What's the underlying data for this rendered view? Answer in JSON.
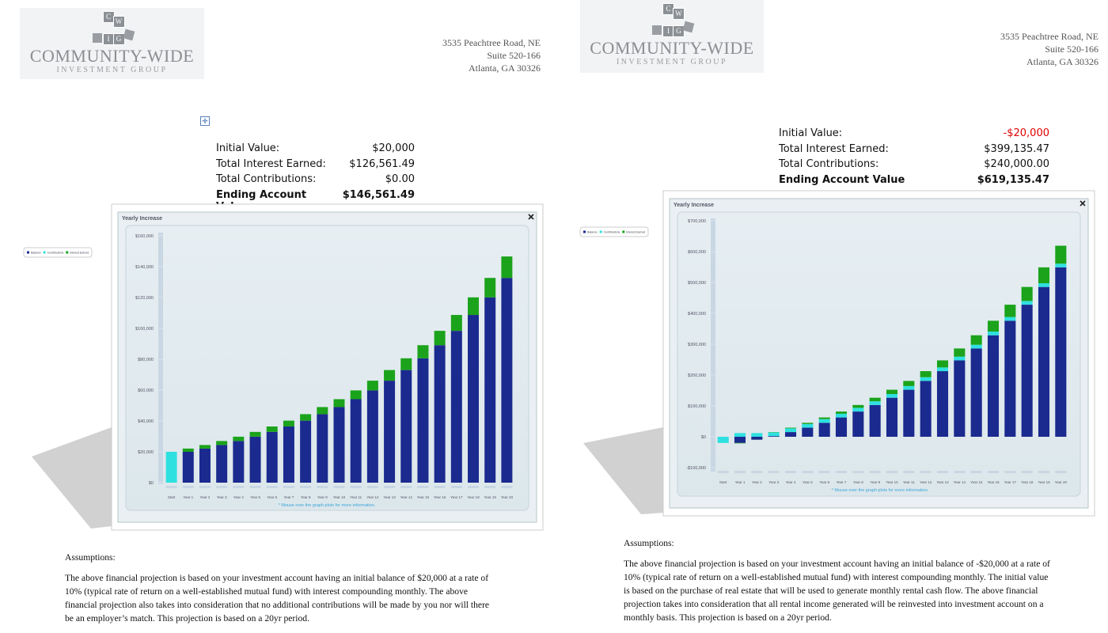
{
  "documents": [
    {
      "logo": {
        "mark": [
          "C",
          "W",
          "I",
          "G"
        ],
        "name": "COMMUNITY-WIDE",
        "sub": "INVESTMENT GROUP"
      },
      "address": [
        "3535 Peachtree Road, NE",
        "Suite 520-166",
        "Atlanta, GA 30326"
      ],
      "summary": [
        {
          "label": "Initial Value:",
          "value": "$20,000"
        },
        {
          "label": "Total Interest Earned:",
          "value": "$126,561.49"
        },
        {
          "label": "Total Contributions:",
          "value": "$0.00"
        },
        {
          "label": "Ending Account Value:",
          "value": "$146,561.49",
          "bold": true
        }
      ],
      "assumptions": {
        "heading": "Assumptions:",
        "text": "The above financial projection is based on your investment account having an initial balance of $20,000 at a rate of 10% (typical rate of return on a well-established mutual fund) with interest compounding monthly.  The above financial projection also takes into consideration that no additional contributions will be made by you nor will there be an employer’s match.  This projection is based on a 20yr period."
      }
    },
    {
      "logo": {
        "mark": [
          "C",
          "W",
          "I",
          "G"
        ],
        "name": "COMMUNITY-WIDE",
        "sub": "INVESTMENT GROUP"
      },
      "address": [
        "3535 Peachtree Road, NE",
        "Suite 520-166",
        "Atlanta, GA 30326"
      ],
      "summary": [
        {
          "label": "Initial Value:",
          "value": "-$20,000",
          "color": "#e00000"
        },
        {
          "label": "Total Interest Earned:",
          "value": "$399,135.47"
        },
        {
          "label": "Total Contributions:",
          "value": "$240,000.00"
        },
        {
          "label": "Ending Account Value",
          "value": "$619,135.47",
          "bold": true
        }
      ],
      "assumptions": {
        "heading": "Assumptions:",
        "text": "The above financial projection is based on your investment account having an initial balance of -$20,000 at a rate of 10% (typical rate of return on a well-established mutual fund) with interest compounding monthly.  The initial value is based on the purchase of real estate that will be used to generate monthly rental cash flow.  The above financial projection takes into consideration that all rental income generated will be reinvested into investment account on a monthly basis.  This projection is based on a 20yr period."
      }
    }
  ],
  "chart_data": [
    {
      "type": "stacked_bar",
      "title": "Yearly Increase",
      "footnote": "* Mouse over the graph plots for more information.",
      "categories": [
        "Start",
        "Year 1",
        "Year 2",
        "Year 3",
        "Year 4",
        "Year 5",
        "Year 6",
        "Year 7",
        "Year 8",
        "Year 9",
        "Year 10",
        "Year 11",
        "Year 12",
        "Year 13",
        "Year 14",
        "Year 15",
        "Year 16",
        "Year 17",
        "Year 18",
        "Year 19",
        "Year 20"
      ],
      "series": [
        {
          "name": "Balance",
          "color": "#1b2a8f",
          "values": [
            0,
            20000,
            22100,
            24400,
            27000,
            29800,
            32900,
            36400,
            40200,
            44400,
            49000,
            54100,
            59800,
            66100,
            73000,
            80600,
            89100,
            98400,
            108700,
            120100,
            132700
          ]
        },
        {
          "name": "Contributions",
          "color": "#2fe0e0",
          "values": [
            20000,
            0,
            0,
            0,
            0,
            0,
            0,
            0,
            0,
            0,
            0,
            0,
            0,
            0,
            0,
            0,
            0,
            0,
            0,
            0,
            0
          ]
        },
        {
          "name": "Interest Earned",
          "color": "#1ba31b",
          "values": [
            0,
            2100,
            2300,
            2600,
            2800,
            3100,
            3500,
            3800,
            4200,
            4600,
            5100,
            5700,
            6300,
            6900,
            7600,
            8500,
            9300,
            10300,
            11400,
            12600,
            13900
          ]
        }
      ],
      "ylim": [
        0,
        160000
      ],
      "yticks": [
        {
          "value": 0,
          "label": "$0"
        },
        {
          "value": 20000,
          "label": "$20,000"
        },
        {
          "value": 40000,
          "label": "$40,000"
        },
        {
          "value": 60000,
          "label": "$60,000"
        },
        {
          "value": 80000,
          "label": "$80,000"
        },
        {
          "value": 100000,
          "label": "$100,000"
        },
        {
          "value": 120000,
          "label": "$120,000"
        },
        {
          "value": 140000,
          "label": "$140,000"
        },
        {
          "value": 160000,
          "label": "$160,000"
        }
      ]
    },
    {
      "type": "stacked_bar",
      "title": "Yearly Increase",
      "footnote": "* Mouse over the graph plots for more information.",
      "categories": [
        "Start",
        "Year 1",
        "Year 2",
        "Year 3",
        "Year 4",
        "Year 5",
        "Year 6",
        "Year 7",
        "Year 8",
        "Year 9",
        "Year 10",
        "Year 11",
        "Year 12",
        "Year 13",
        "Year 14",
        "Year 15",
        "Year 16",
        "Year 17",
        "Year 18",
        "Year 19",
        "Year 20"
      ],
      "series": [
        {
          "name": "Balance",
          "color": "#1b2a8f",
          "values": [
            0,
            -20000,
            -9400,
            2300,
            15200,
            29400,
            45200,
            62600,
            81800,
            103000,
            126500,
            152400,
            181000,
            212700,
            247600,
            286200,
            328900,
            376000,
            428000,
            485500,
            549000
          ]
        },
        {
          "name": "Contributions",
          "color": "#2fe0e0",
          "values": [
            -20000,
            12000,
            12000,
            12000,
            12000,
            12000,
            12000,
            12000,
            12000,
            12000,
            12000,
            12000,
            12000,
            12000,
            12000,
            12000,
            12000,
            12000,
            12000,
            12000,
            12000
          ]
        },
        {
          "name": "Interest Earned",
          "color": "#1ba31b",
          "values": [
            0,
            -1400,
            -300,
            900,
            2200,
            3800,
            5400,
            7200,
            9200,
            11500,
            13900,
            16600,
            19700,
            22900,
            26600,
            30700,
            35100,
            40000,
            45500,
            51500,
            58100
          ]
        }
      ],
      "ylim": [
        -100000,
        700000
      ],
      "yticks": [
        {
          "value": -100000,
          "label": "-$100,000"
        },
        {
          "value": 0,
          "label": "$0"
        },
        {
          "value": 100000,
          "label": "$100,000"
        },
        {
          "value": 200000,
          "label": "$200,000"
        },
        {
          "value": 300000,
          "label": "$300,000"
        },
        {
          "value": 400000,
          "label": "$400,000"
        },
        {
          "value": 500000,
          "label": "$500,000"
        },
        {
          "value": 600000,
          "label": "$600,000"
        },
        {
          "value": 700000,
          "label": "$700,000"
        }
      ]
    }
  ]
}
